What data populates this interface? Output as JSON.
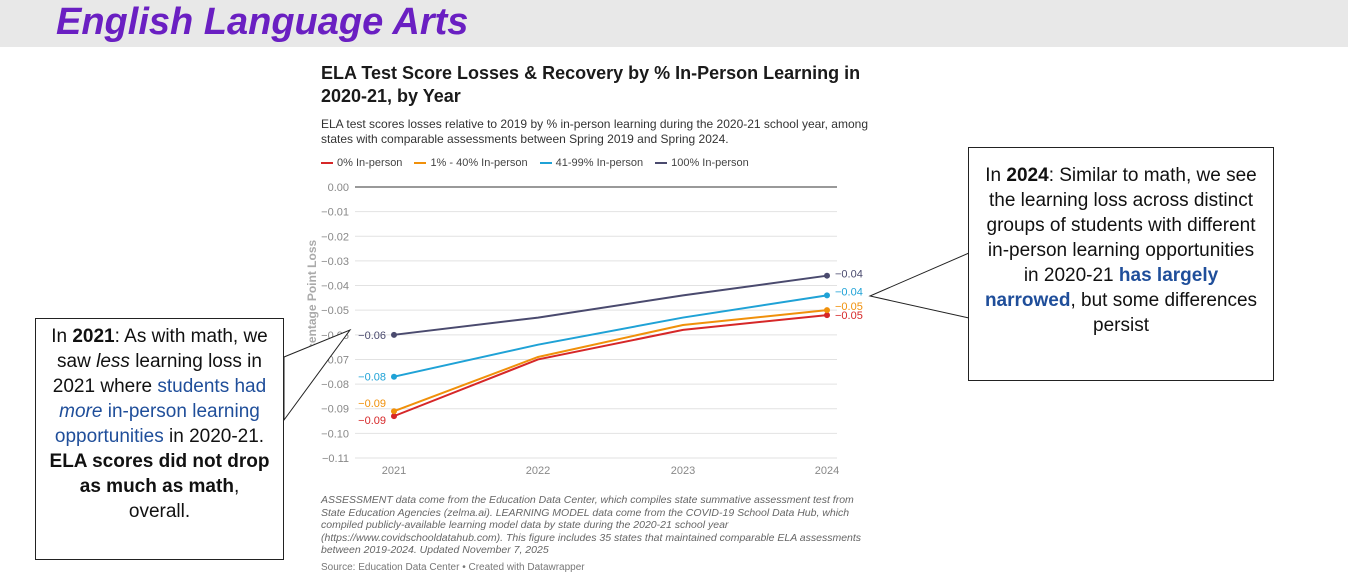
{
  "slide": {
    "title": "English Language Arts"
  },
  "chart_data": {
    "type": "line",
    "title": "ELA Test Score Losses & Recovery by % In-Person Learning in 2020-21, by Year",
    "subtitle": "ELA test scores losses relative to 2019 by % in-person learning during the 2020-21 school year, among states with comparable assessments between Spring 2019 and Spring 2024.",
    "ylabel": "Percentage Point Loss",
    "xlabel": "",
    "categories": [
      "2021",
      "2022",
      "2023",
      "2024"
    ],
    "ylim": [
      -0.11,
      0.0
    ],
    "yticks": [
      "0.00",
      "−0.01",
      "−0.02",
      "−0.03",
      "−0.04",
      "−0.05",
      "−0.06",
      "−0.07",
      "−0.08",
      "−0.09",
      "−0.10",
      "−0.11"
    ],
    "series": [
      {
        "name": "0% In-person",
        "color": "#d62728",
        "values": [
          -0.093,
          -0.07,
          -0.058,
          -0.052
        ],
        "start_label": "−0.09",
        "end_label": "−0.05"
      },
      {
        "name": "1% - 40% In-person",
        "color": "#f0900a",
        "values": [
          -0.091,
          -0.069,
          -0.056,
          -0.05
        ],
        "start_label": "−0.09",
        "end_label": "−0.05"
      },
      {
        "name": "41-99% In-person",
        "color": "#1fa2d6",
        "values": [
          -0.077,
          -0.064,
          -0.053,
          -0.044
        ],
        "start_label": "−0.08",
        "end_label": "−0.04"
      },
      {
        "name": "100% In-person",
        "color": "#4a4a6e",
        "values": [
          -0.06,
          -0.053,
          -0.044,
          -0.036
        ],
        "start_label": "−0.06",
        "end_label": "−0.04"
      }
    ],
    "notes": "ASSESSMENT data come from the Education Data Center, which compiles state summative assessment test from State Education Agencies (zelma.ai). LEARNING MODEL data come from the COVID-19 School Data Hub, which compiled publicly-available learning model data by state during the 2020-21 school year (https://www.covidschooldatahub.com). This figure includes 35 states that maintained comparable ELA assessments between 2019-2024. Updated November 7, 2025",
    "source": "Source: Education Data Center • Created with Datawrapper",
    "legend_position": "top-left",
    "grid": true
  },
  "callout_left": {
    "p1": "In ",
    "year": "2021",
    "p2": ": As with math, we saw ",
    "less": "less",
    "p3": " learning loss in 2021 where ",
    "blue1": "students had ",
    "more": "more",
    "blue2": " in-person learning opportunities",
    "p4": " in 2020-21. ",
    "bold": "ELA scores did not drop as much as math",
    "p5": ", overall."
  },
  "callout_right": {
    "p1": "In ",
    "year": "2024",
    "p2": ": Similar to math, we see the learning loss across distinct groups of students with different in-person learning opportunities in 2020-21 ",
    "blue_bold": "has largely narrowed",
    "p3": ", but some differences persist"
  }
}
